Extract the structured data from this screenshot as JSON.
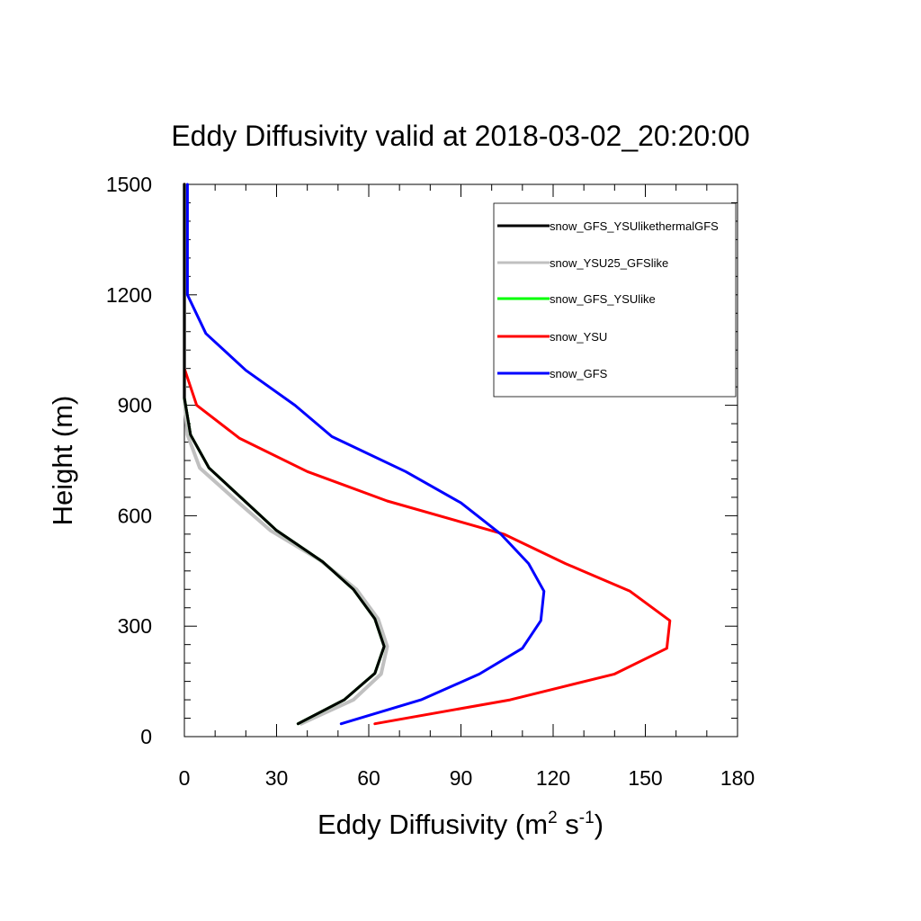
{
  "chart_data": {
    "type": "line",
    "title": "Eddy Diffusivity valid at 2018-03-02_20:20:00",
    "xlabel": {
      "base": "Eddy Diffusivity (m",
      "sup1": "2",
      "mid": " s",
      "sup2": "-1",
      "end": ")"
    },
    "ylabel": "Height (m)",
    "xlim": [
      0,
      180
    ],
    "ylim": [
      0,
      1500
    ],
    "xticks": [
      0,
      30,
      60,
      90,
      120,
      150,
      180
    ],
    "yticks": [
      0,
      300,
      600,
      900,
      1200,
      1500
    ],
    "legend_position": "top-right",
    "grid": false,
    "series": [
      {
        "name": "snow_GFS_YSUlikethermalGFS",
        "color": "#000000",
        "points": [
          [
            37,
            35
          ],
          [
            52,
            100
          ],
          [
            62,
            172
          ],
          [
            65,
            245
          ],
          [
            62,
            320
          ],
          [
            55,
            400
          ],
          [
            45,
            475
          ],
          [
            30,
            560
          ],
          [
            19,
            645
          ],
          [
            8,
            730
          ],
          [
            2,
            820
          ],
          [
            0,
            920
          ],
          [
            0,
            1000
          ],
          [
            0,
            1100
          ],
          [
            0,
            1200
          ],
          [
            0,
            1300
          ],
          [
            0,
            1400
          ],
          [
            0,
            1500
          ]
        ]
      },
      {
        "name": "snow_YSU25_GFSlike",
        "color": "#c0c0c0",
        "points": [
          [
            38,
            35
          ],
          [
            55,
            100
          ],
          [
            64,
            170
          ],
          [
            66,
            245
          ],
          [
            63,
            320
          ],
          [
            56,
            400
          ],
          [
            44,
            480
          ],
          [
            28,
            560
          ],
          [
            17,
            640
          ],
          [
            5,
            730
          ],
          [
            1,
            820
          ],
          [
            0,
            920
          ],
          [
            0,
            1000
          ],
          [
            0,
            1100
          ],
          [
            0,
            1200
          ],
          [
            0,
            1300
          ],
          [
            0,
            1400
          ],
          [
            0,
            1500
          ]
        ]
      },
      {
        "name": "snow_GFS_YSUlike",
        "color": "#00ff00",
        "points": [
          [
            37,
            35
          ],
          [
            52,
            100
          ],
          [
            62,
            172
          ],
          [
            65,
            245
          ],
          [
            62,
            320
          ],
          [
            55,
            400
          ],
          [
            45,
            475
          ],
          [
            30,
            560
          ],
          [
            19,
            645
          ],
          [
            8,
            730
          ],
          [
            2,
            820
          ],
          [
            0,
            920
          ],
          [
            0,
            1000
          ],
          [
            0,
            1100
          ],
          [
            0,
            1200
          ],
          [
            0,
            1300
          ],
          [
            0,
            1400
          ],
          [
            0,
            1500
          ]
        ]
      },
      {
        "name": "snow_YSU",
        "color": "#ff0000",
        "points": [
          [
            62,
            35
          ],
          [
            106,
            100
          ],
          [
            140,
            170
          ],
          [
            157,
            240
          ],
          [
            158,
            315
          ],
          [
            145,
            395
          ],
          [
            124,
            470
          ],
          [
            104,
            550
          ],
          [
            66,
            640
          ],
          [
            40,
            720
          ],
          [
            18,
            810
          ],
          [
            4,
            900
          ],
          [
            0,
            1000
          ],
          [
            0,
            1100
          ],
          [
            0,
            1200
          ],
          [
            0,
            1300
          ],
          [
            0,
            1400
          ],
          [
            0,
            1500
          ]
        ]
      },
      {
        "name": "snow_GFS",
        "color": "#0000ff",
        "points": [
          [
            51,
            35
          ],
          [
            77,
            100
          ],
          [
            96,
            170
          ],
          [
            110,
            240
          ],
          [
            116,
            315
          ],
          [
            117,
            395
          ],
          [
            112,
            470
          ],
          [
            103,
            550
          ],
          [
            90,
            635
          ],
          [
            72,
            720
          ],
          [
            48,
            815
          ],
          [
            36,
            900
          ],
          [
            20,
            995
          ],
          [
            7,
            1095
          ],
          [
            1,
            1200
          ],
          [
            1,
            1300
          ],
          [
            1,
            1400
          ],
          [
            1,
            1500
          ]
        ]
      }
    ]
  }
}
